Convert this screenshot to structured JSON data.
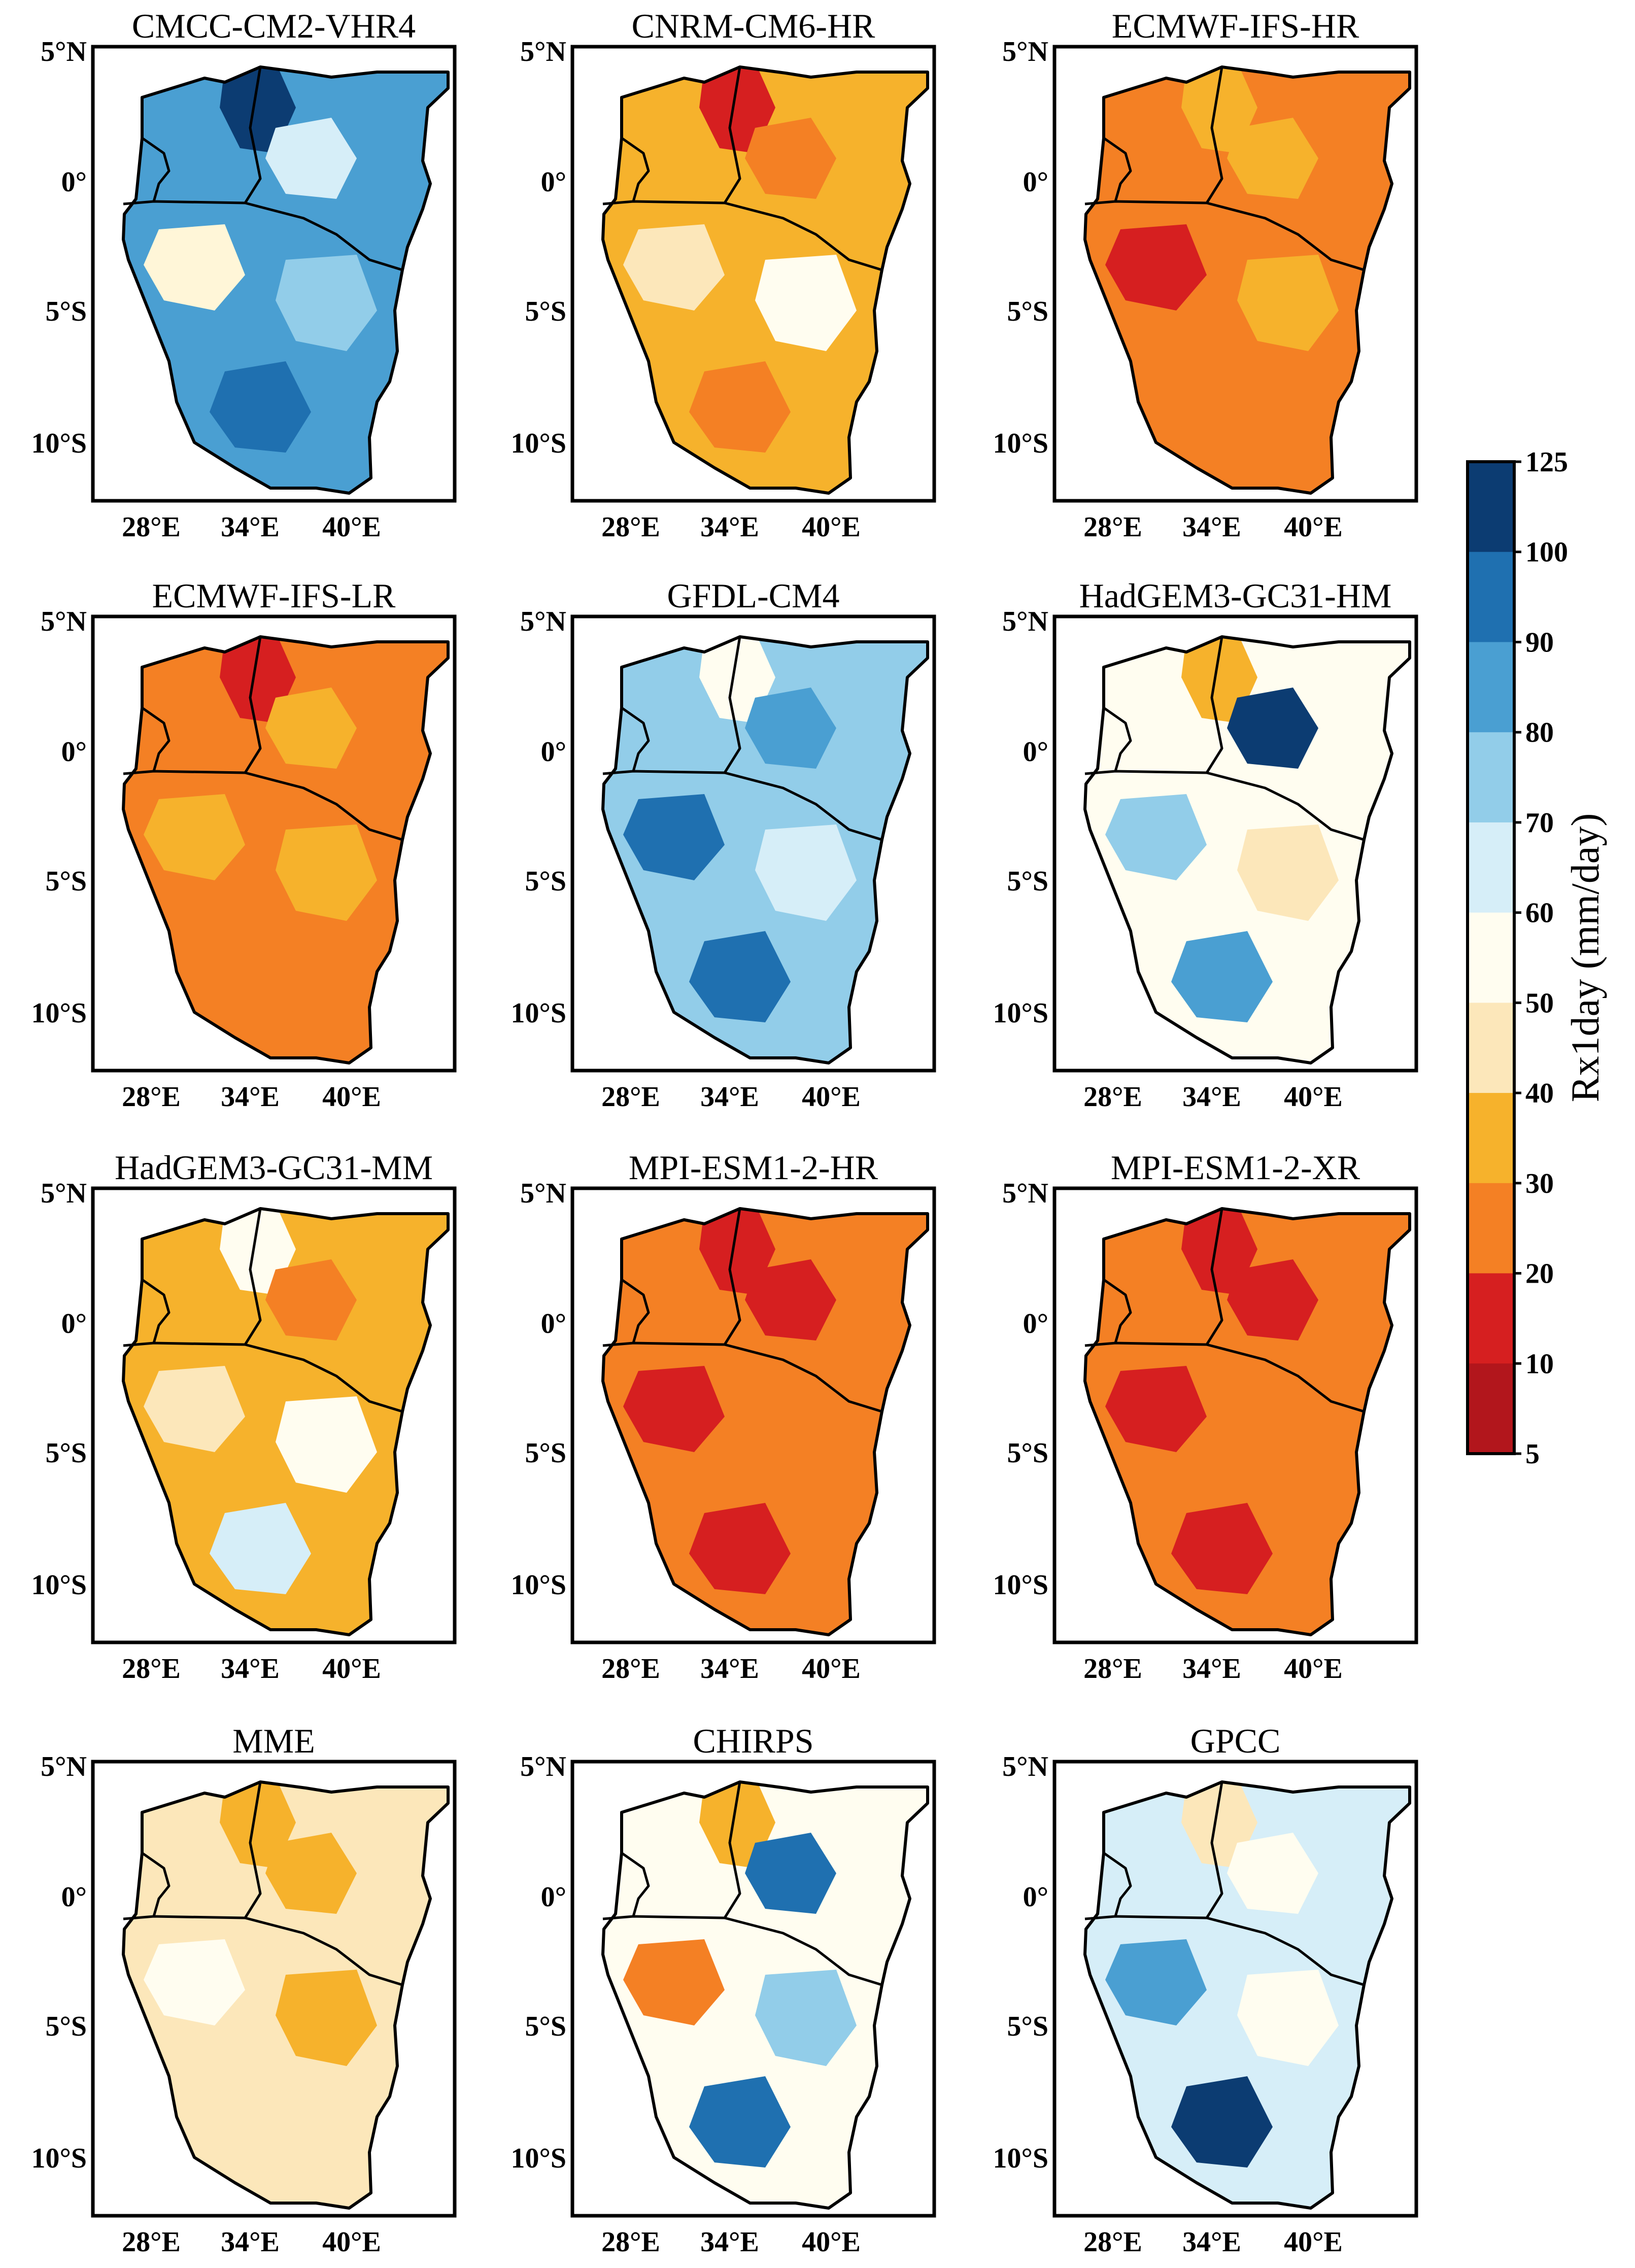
{
  "figure": {
    "panels": [
      {
        "title": "CMCC-CM2-VHR4",
        "palette": "blue",
        "base": "#4a9fd2",
        "patches": [
          {
            "fill": "#0c3c72"
          },
          {
            "fill": "#d6eef8"
          },
          {
            "fill": "#fff6d8"
          },
          {
            "fill": "#92cde9"
          },
          {
            "fill": "#1f70b0"
          }
        ]
      },
      {
        "title": "CNRM-CM6-HR",
        "palette": "warm",
        "base": "#f6b22c",
        "patches": [
          {
            "fill": "#d61f20"
          },
          {
            "fill": "#f48024"
          },
          {
            "fill": "#fce7ba"
          },
          {
            "fill": "#fffdf0"
          },
          {
            "fill": "#f48024"
          }
        ]
      },
      {
        "title": "ECMWF-IFS-HR",
        "palette": "orange",
        "base": "#f48024",
        "patches": [
          {
            "fill": "#f6b22c"
          },
          {
            "fill": "#f6b22c"
          },
          {
            "fill": "#d61f20"
          },
          {
            "fill": "#f6b22c"
          },
          {
            "fill": "#f48024"
          }
        ]
      },
      {
        "title": "ECMWF-IFS-LR",
        "palette": "orange",
        "base": "#f48024",
        "patches": [
          {
            "fill": "#d61f20"
          },
          {
            "fill": "#f6b22c"
          },
          {
            "fill": "#f6b22c"
          },
          {
            "fill": "#f6b22c"
          },
          {
            "fill": "#f48024"
          }
        ]
      },
      {
        "title": "GFDL-CM4",
        "palette": "blue",
        "base": "#92cde9",
        "patches": [
          {
            "fill": "#fffdf0"
          },
          {
            "fill": "#4a9fd2"
          },
          {
            "fill": "#1f70b0"
          },
          {
            "fill": "#d6eef8"
          },
          {
            "fill": "#1f70b0"
          }
        ]
      },
      {
        "title": "HadGEM3-GC31-HM",
        "palette": "mixed",
        "base": "#fffdf0",
        "patches": [
          {
            "fill": "#f6b22c"
          },
          {
            "fill": "#0c3c72"
          },
          {
            "fill": "#92cde9"
          },
          {
            "fill": "#fce7ba"
          },
          {
            "fill": "#4a9fd2"
          }
        ]
      },
      {
        "title": "HadGEM3-GC31-MM",
        "palette": "warm",
        "base": "#f6b22c",
        "patches": [
          {
            "fill": "#fffdf0"
          },
          {
            "fill": "#f48024"
          },
          {
            "fill": "#fce7ba"
          },
          {
            "fill": "#fffdf0"
          },
          {
            "fill": "#d6eef8"
          }
        ]
      },
      {
        "title": "MPI-ESM1-2-HR",
        "palette": "red",
        "base": "#f48024",
        "patches": [
          {
            "fill": "#d61f20"
          },
          {
            "fill": "#d61f20"
          },
          {
            "fill": "#d61f20"
          },
          {
            "fill": "#f48024"
          },
          {
            "fill": "#d61f20"
          }
        ]
      },
      {
        "title": "MPI-ESM1-2-XR",
        "palette": "red",
        "base": "#f48024",
        "patches": [
          {
            "fill": "#d61f20"
          },
          {
            "fill": "#d61f20"
          },
          {
            "fill": "#d61f20"
          },
          {
            "fill": "#f48024"
          },
          {
            "fill": "#d61f20"
          }
        ]
      },
      {
        "title": "MME",
        "palette": "light",
        "base": "#fce7ba",
        "patches": [
          {
            "fill": "#f6b22c"
          },
          {
            "fill": "#f6b22c"
          },
          {
            "fill": "#fffdf0"
          },
          {
            "fill": "#f6b22c"
          },
          {
            "fill": "#fce7ba"
          }
        ]
      },
      {
        "title": "CHIRPS",
        "palette": "mixed",
        "base": "#fffdf0",
        "patches": [
          {
            "fill": "#f6b22c"
          },
          {
            "fill": "#1f70b0"
          },
          {
            "fill": "#f48024"
          },
          {
            "fill": "#92cde9"
          },
          {
            "fill": "#1f70b0"
          }
        ]
      },
      {
        "title": "GPCC",
        "palette": "lightblue",
        "base": "#d6eef8",
        "patches": [
          {
            "fill": "#fce7ba"
          },
          {
            "fill": "#fffdf0"
          },
          {
            "fill": "#4a9fd2"
          },
          {
            "fill": "#fffdf0"
          },
          {
            "fill": "#0c3c72"
          }
        ]
      }
    ],
    "axes": {
      "lat_ticks": [
        "5°N",
        "0°",
        "5°S",
        "10°S"
      ],
      "lon_ticks": [
        "28°E",
        "34°E",
        "40°E"
      ]
    },
    "colorbar": {
      "label": "Rx1day (mm/day)",
      "ticks": [
        "125",
        "100",
        "90",
        "80",
        "70",
        "60",
        "50",
        "40",
        "30",
        "20",
        "10",
        "5"
      ],
      "colors": [
        "#0c3c72",
        "#1f70b0",
        "#4a9fd2",
        "#92cde9",
        "#d6eef8",
        "#fffdf0",
        "#fce7ba",
        "#f6b22c",
        "#f48024",
        "#d61f20",
        "#b2161c"
      ]
    }
  }
}
